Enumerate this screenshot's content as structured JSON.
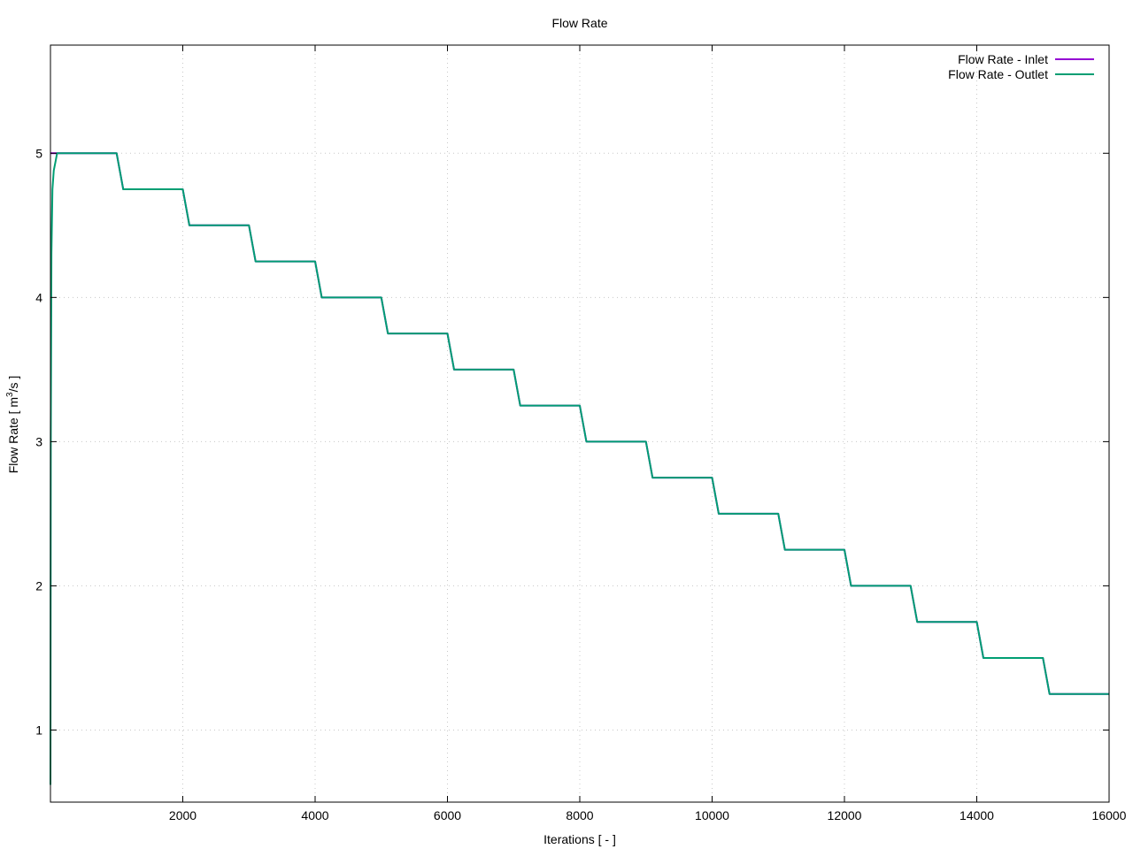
{
  "chart_data": {
    "type": "line",
    "title": "Flow Rate",
    "xlabel": "Iterations [ - ]",
    "ylabel_main": "Flow Rate [ m",
    "ylabel_sup": "3",
    "ylabel_tail": "/s ]",
    "xlim": [
      0,
      16000
    ],
    "ylim": [
      0.5,
      5.75
    ],
    "x_ticks": [
      2000,
      4000,
      6000,
      8000,
      10000,
      12000,
      14000,
      16000
    ],
    "x_tick_labels": [
      "2000",
      "4000",
      "6000",
      "8000",
      "10000",
      "12000",
      "14000",
      "16000"
    ],
    "y_ticks": [
      1,
      2,
      3,
      4,
      5
    ],
    "y_tick_labels": [
      "1",
      "2",
      "3",
      "4",
      "5"
    ],
    "grid": true,
    "legend_position": "top-right",
    "series": [
      {
        "name": "Flow Rate - Inlet",
        "color": "#9400d3",
        "x": [
          0,
          1000,
          1100,
          2000,
          2100,
          3000,
          3100,
          4000,
          4100,
          5000,
          5100,
          6000,
          6100,
          7000,
          7100,
          8000,
          8100,
          9000,
          9100,
          10000,
          10100,
          11000,
          11100,
          12000,
          12100,
          13000,
          13100,
          14000,
          14100,
          15000,
          15100,
          16000
        ],
        "y": [
          5.0,
          5.0,
          4.75,
          4.75,
          4.5,
          4.5,
          4.25,
          4.25,
          4.0,
          4.0,
          3.75,
          3.75,
          3.5,
          3.5,
          3.25,
          3.25,
          3.0,
          3.0,
          2.75,
          2.75,
          2.5,
          2.5,
          2.25,
          2.25,
          2.0,
          2.0,
          1.75,
          1.75,
          1.5,
          1.5,
          1.25,
          1.25
        ]
      },
      {
        "name": "Flow Rate - Outlet",
        "color": "#009e73",
        "x": [
          0,
          5,
          15,
          30,
          50,
          80,
          100,
          1000,
          1100,
          2000,
          2100,
          3000,
          3100,
          4000,
          4100,
          5000,
          5100,
          6000,
          6100,
          7000,
          7100,
          8000,
          8100,
          9000,
          9100,
          10000,
          10100,
          11000,
          11100,
          12000,
          12100,
          13000,
          13100,
          14000,
          14100,
          15000,
          15100,
          16000
        ],
        "y": [
          0.62,
          3.0,
          4.3,
          4.75,
          4.88,
          4.95,
          5.0,
          5.0,
          4.75,
          4.75,
          4.5,
          4.5,
          4.25,
          4.25,
          4.0,
          4.0,
          3.75,
          3.75,
          3.5,
          3.5,
          3.25,
          3.25,
          3.0,
          3.0,
          2.75,
          2.75,
          2.5,
          2.5,
          2.25,
          2.25,
          2.0,
          2.0,
          1.75,
          1.75,
          1.5,
          1.5,
          1.25,
          1.25
        ]
      }
    ]
  }
}
